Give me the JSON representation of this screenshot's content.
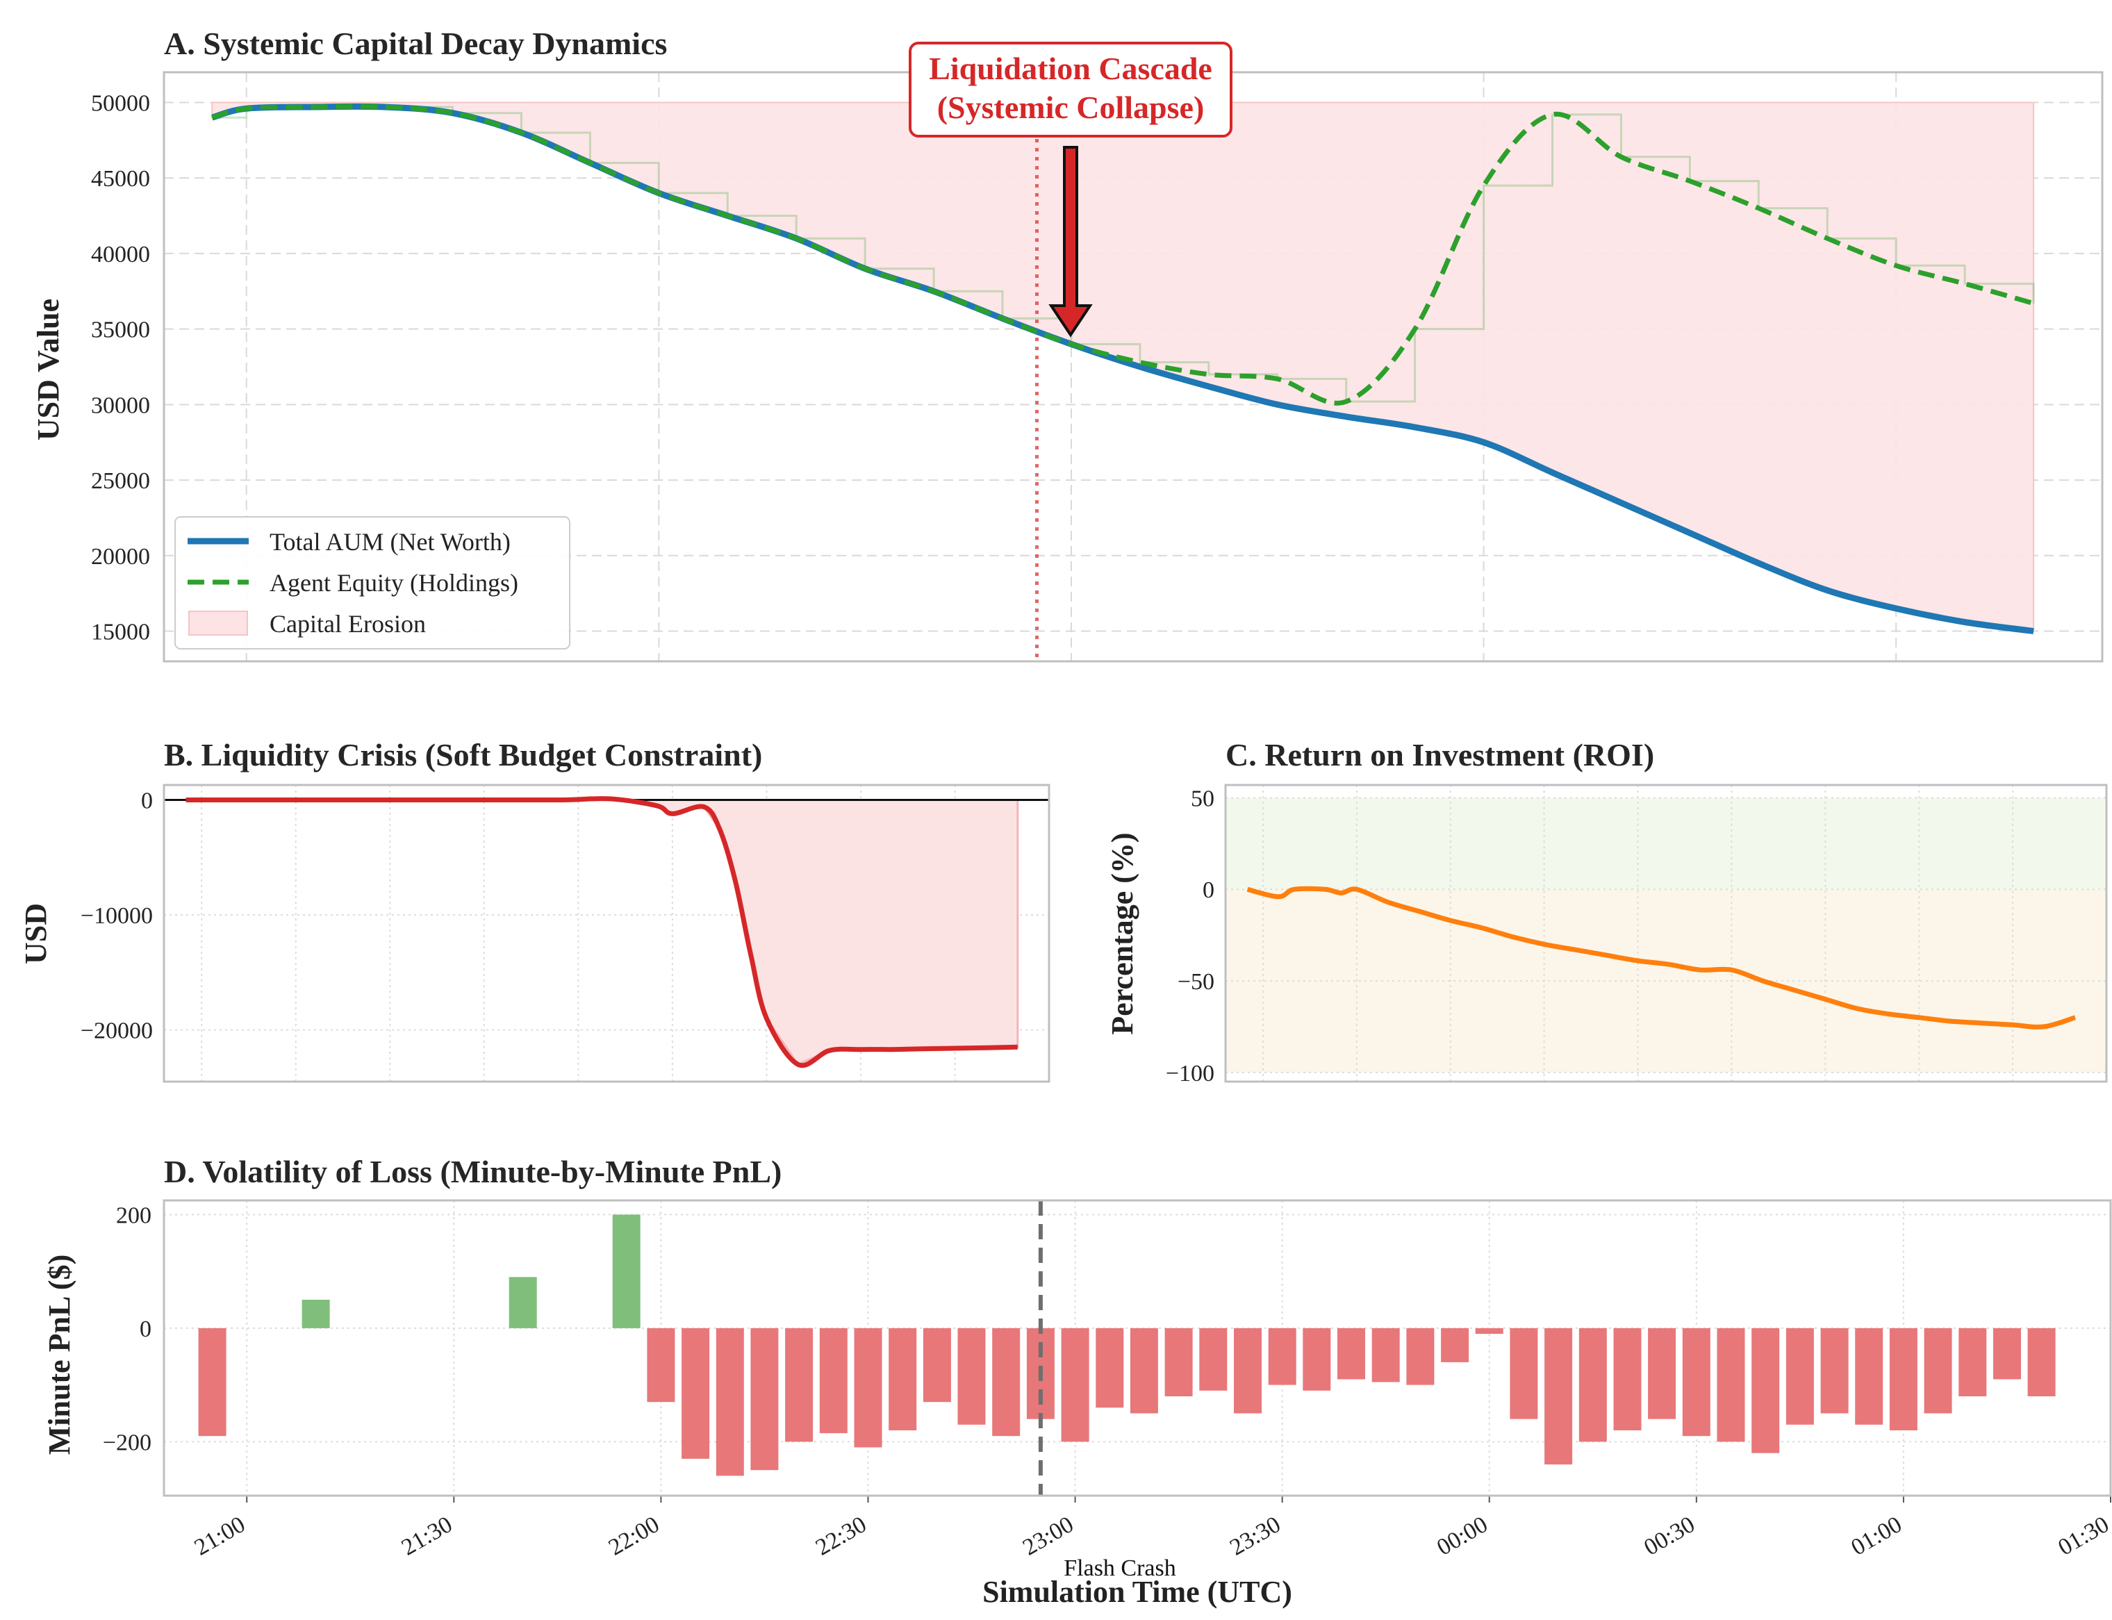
{
  "figure": {
    "panel_a": {
      "title": "A. Systemic Capital Decay Dynamics",
      "ylabel": "USD Value",
      "annotation": {
        "line1": "Liquidation Cascade",
        "line2": "(Systemic Collapse)"
      },
      "legend": [
        "Total AUM (Net Worth)",
        "Agent Equity (Holdings)",
        "Capital Erosion"
      ]
    },
    "panel_b": {
      "title": "B. Liquidity Crisis (Soft Budget Constraint)",
      "ylabel": "USD"
    },
    "panel_c": {
      "title": "C. Return on Investment (ROI)",
      "ylabel": "Percentage (%)"
    },
    "panel_d": {
      "title": "D. Volatility of Loss (Minute-by-Minute PnL)",
      "ylabel": "Minute PnL ($)",
      "marker_label": "Flash Crash"
    },
    "xlabel": "Simulation Time (UTC)",
    "colors": {
      "aum": "#1f77b4",
      "equity": "#2ca02c",
      "erosion": "#fde3e4",
      "cash": "#d62728",
      "roi": "#ff7f0e",
      "gain_bar": "#7fbf7b",
      "loss_bar": "#e8777a",
      "annotation": "#d62728"
    }
  },
  "chart_data": [
    {
      "id": "A",
      "type": "line",
      "title": "A. Systemic Capital Decay Dynamics",
      "ylabel": "USD Value",
      "xlim": [
        "20:48",
        "01:30"
      ],
      "ylim": [
        13000,
        52000
      ],
      "yticks": [
        15000,
        20000,
        25000,
        30000,
        35000,
        40000,
        45000,
        50000
      ],
      "x": [
        "20:55",
        "21:00",
        "21:10",
        "21:20",
        "21:30",
        "21:40",
        "21:50",
        "22:00",
        "22:10",
        "22:20",
        "22:30",
        "22:40",
        "22:50",
        "23:00",
        "23:10",
        "23:20",
        "23:30",
        "23:40",
        "23:50",
        "00:00",
        "00:10",
        "00:20",
        "00:30",
        "00:40",
        "00:50",
        "01:00",
        "01:10",
        "01:20"
      ],
      "series": [
        {
          "name": "Total AUM (Net Worth)",
          "values": [
            49000,
            49600,
            49700,
            49700,
            49300,
            48000,
            46000,
            44000,
            42500,
            41000,
            39000,
            37500,
            35700,
            34000,
            32500,
            31200,
            30000,
            29200,
            28500,
            27500,
            25500,
            23500,
            21500,
            19500,
            17700,
            16500,
            15600,
            15000
          ]
        },
        {
          "name": "Agent Equity (Holdings)",
          "values": [
            49000,
            49600,
            49700,
            49700,
            49300,
            48000,
            46000,
            44000,
            42500,
            41000,
            39000,
            37500,
            35700,
            34000,
            32800,
            32000,
            31700,
            30200,
            35000,
            44500,
            49200,
            46400,
            44800,
            43000,
            41000,
            39200,
            38000,
            36700
          ]
        }
      ],
      "erosion_top": 50000,
      "annotation": {
        "text": "Liquidation Cascade (Systemic Collapse)",
        "x": "22:55",
        "y": 34000
      }
    },
    {
      "id": "B",
      "type": "line",
      "title": "B. Liquidity Crisis (Soft Budget Constraint)",
      "ylabel": "USD",
      "xlim": [
        "20:48",
        "01:30"
      ],
      "ylim": [
        -24500,
        1300
      ],
      "yticks": [
        -20000,
        -10000,
        0
      ],
      "x": [
        "20:55",
        "21:30",
        "22:00",
        "22:30",
        "22:55",
        "23:10",
        "23:25",
        "23:30",
        "23:40",
        "23:45",
        "23:50",
        "23:55",
        "00:00",
        "00:10",
        "00:20",
        "00:30",
        "00:40",
        "00:50",
        "01:00",
        "01:10",
        "01:20"
      ],
      "values": [
        0,
        0,
        0,
        0,
        0,
        100,
        -500,
        -1200,
        -600,
        -2500,
        -7000,
        -13500,
        -19000,
        -23000,
        -21800,
        -21700,
        -21700,
        -21650,
        -21600,
        -21550,
        -21500
      ]
    },
    {
      "id": "C",
      "type": "line",
      "title": "C. Return on Investment (ROI)",
      "ylabel": "Percentage (%)",
      "xlim": [
        "20:48",
        "01:30"
      ],
      "ylim": [
        -105,
        57
      ],
      "yticks": [
        -100,
        -50,
        0,
        50
      ],
      "x": [
        "20:55",
        "21:05",
        "21:10",
        "21:20",
        "21:25",
        "21:30",
        "21:40",
        "21:50",
        "22:00",
        "22:10",
        "22:20",
        "22:30",
        "22:40",
        "22:50",
        "23:00",
        "23:10",
        "23:20",
        "23:30",
        "23:40",
        "23:50",
        "00:00",
        "00:10",
        "00:20",
        "00:30",
        "00:40",
        "00:50",
        "01:00",
        "01:10",
        "01:20"
      ],
      "values": [
        0,
        -4,
        0,
        0,
        -2,
        0,
        -7,
        -12,
        -17,
        -21,
        -26,
        -30,
        -33,
        -36,
        -39,
        -41,
        -44,
        -44,
        -50,
        -55,
        -60,
        -65,
        -68,
        -70,
        -72,
        -73,
        -74,
        -75,
        -70
      ]
    },
    {
      "id": "D",
      "type": "bar",
      "title": "D. Volatility of Loss (Minute-by-Minute PnL)",
      "ylabel": "Minute PnL ($)",
      "xlabel": "Simulation Time (UTC)",
      "xlim": [
        "20:48",
        "01:30"
      ],
      "ylim": [
        -295,
        225
      ],
      "yticks": [
        -200,
        0,
        200
      ],
      "xticks": [
        "21:00",
        "21:30",
        "22:00",
        "22:30",
        "23:00",
        "23:30",
        "00:00",
        "00:30",
        "01:00",
        "01:30"
      ],
      "marker": {
        "x": "22:55",
        "label": "Flash Crash"
      },
      "x": [
        "20:55",
        "21:00",
        "21:05",
        "21:10",
        "21:15",
        "21:20",
        "21:25",
        "21:30",
        "21:35",
        "21:40",
        "21:45",
        "21:50",
        "21:55",
        "22:00",
        "22:05",
        "22:10",
        "22:15",
        "22:20",
        "22:25",
        "22:30",
        "22:35",
        "22:40",
        "22:45",
        "22:50",
        "22:55",
        "23:00",
        "23:05",
        "23:10",
        "23:15",
        "23:20",
        "23:25",
        "23:30",
        "23:35",
        "23:40",
        "23:45",
        "23:50",
        "23:55",
        "00:00",
        "00:05",
        "00:10",
        "00:15",
        "00:20",
        "00:25",
        "00:30",
        "00:35",
        "00:40",
        "00:45",
        "00:50",
        "00:55",
        "01:00",
        "01:05",
        "01:10",
        "01:15",
        "01:20"
      ],
      "values": [
        -190,
        0,
        0,
        50,
        0,
        0,
        0,
        0,
        0,
        90,
        0,
        0,
        200,
        -130,
        -230,
        -260,
        -250,
        -200,
        -185,
        -210,
        -180,
        -130,
        -170,
        -190,
        -160,
        -200,
        -140,
        -150,
        -120,
        -110,
        -150,
        -100,
        -110,
        -90,
        -95,
        -100,
        -60,
        -10,
        -160,
        -240,
        -200,
        -180,
        -160,
        -190,
        -200,
        -220,
        -170,
        -150,
        -170,
        -180,
        -150,
        -120,
        -90,
        -120
      ]
    }
  ]
}
